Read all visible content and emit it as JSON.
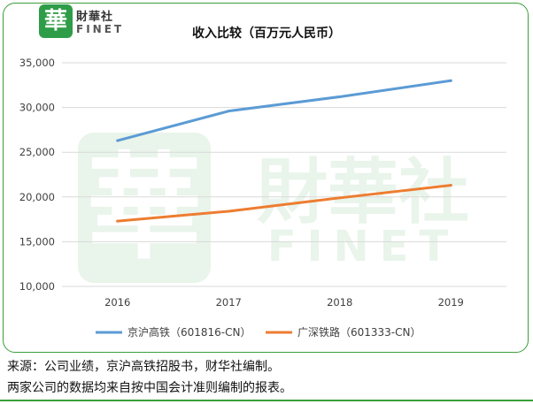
{
  "logo": {
    "mark": "華",
    "name_cn": "財華社",
    "name_en": "FINET"
  },
  "chart_data": {
    "type": "line",
    "title": "收入比较（百万元人民币）",
    "categories": [
      "2016",
      "2017",
      "2018",
      "2019"
    ],
    "ylim": [
      10000,
      35000
    ],
    "yticks": [
      "10,000",
      "15,000",
      "20,000",
      "25,000",
      "30,000",
      "35,000"
    ],
    "ytick_values": [
      10000,
      15000,
      20000,
      25000,
      30000,
      35000
    ],
    "grid": true,
    "legend_position": "bottom",
    "series": [
      {
        "name": "京沪高铁（601816-CN）",
        "values": [
          26300,
          29600,
          31200,
          33000
        ],
        "color": "#5b9bd5"
      },
      {
        "name": "广深铁路（601333-CN）",
        "values": [
          17300,
          18400,
          19900,
          21300
        ],
        "color": "#ed7d31"
      }
    ]
  },
  "captions": {
    "source": "来源：公司业绩，京沪高铁招股书，财华社编制。",
    "note": "两家公司的数据均来自按中国会计准则编制的报表。"
  },
  "watermark": {
    "mark": "華",
    "name_cn": "財華社",
    "name_en": "FINET"
  }
}
